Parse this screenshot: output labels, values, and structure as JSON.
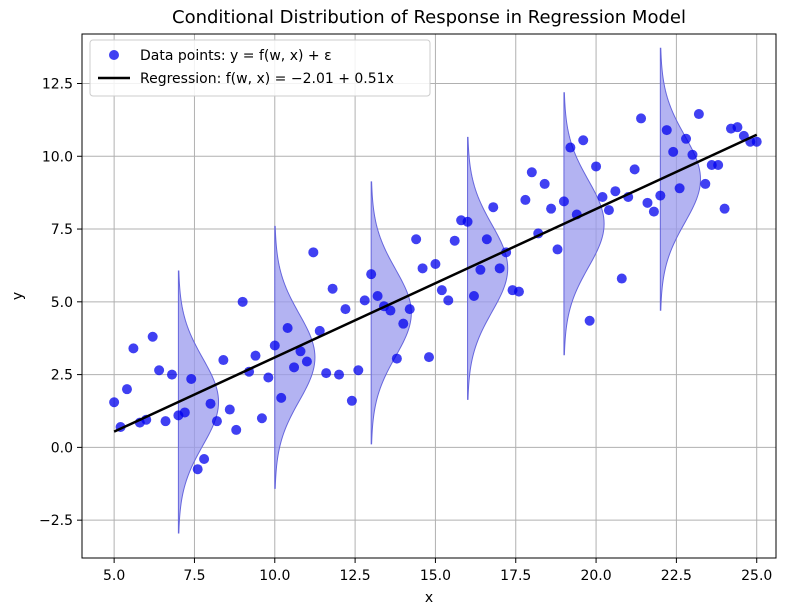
{
  "chart_data": {
    "type": "scatter",
    "title": "Conditional Distribution of Response in Regression Model",
    "xlabel": "x",
    "ylabel": "y",
    "xlim": [
      4.0,
      25.6
    ],
    "ylim": [
      -3.8,
      14.2
    ],
    "xticks": [
      5.0,
      7.5,
      10.0,
      12.5,
      15.0,
      17.5,
      20.0,
      22.5,
      25.0
    ],
    "xtick_labels": [
      "5.0",
      "7.5",
      "10.0",
      "12.5",
      "15.0",
      "17.5",
      "20.0",
      "22.5",
      "25.0"
    ],
    "yticks": [
      -2.5,
      0.0,
      2.5,
      5.0,
      7.5,
      10.0,
      12.5
    ],
    "ytick_labels": [
      "−2.5",
      "0.0",
      "2.5",
      "5.0",
      "7.5",
      "10.0",
      "12.5"
    ],
    "grid": true,
    "legend_position": "top-left",
    "colors": {
      "points": "#0000ee",
      "line": "#000000",
      "density_fill": "#9999ee",
      "density_edge": "#6666dd",
      "grid": "#b0b0b0"
    },
    "series": [
      {
        "name": "Data points: y = f(w, x) + ε",
        "kind": "scatter",
        "x": [
          5.0,
          5.2,
          5.4,
          5.6,
          5.8,
          6.0,
          6.2,
          6.4,
          6.6,
          6.8,
          7.0,
          7.2,
          7.4,
          7.6,
          7.8,
          8.0,
          8.2,
          8.4,
          8.6,
          8.8,
          9.0,
          9.2,
          9.4,
          9.6,
          9.8,
          10.0,
          10.2,
          10.4,
          10.6,
          10.8,
          11.0,
          11.2,
          11.4,
          11.6,
          11.8,
          12.0,
          12.2,
          12.4,
          12.6,
          12.8,
          13.0,
          13.2,
          13.4,
          13.6,
          13.8,
          14.0,
          14.2,
          14.4,
          14.6,
          14.8,
          15.0,
          15.2,
          15.4,
          15.6,
          15.8,
          16.0,
          16.2,
          16.4,
          16.6,
          16.8,
          17.0,
          17.2,
          17.4,
          17.6,
          17.8,
          18.0,
          18.2,
          18.4,
          18.6,
          18.8,
          19.0,
          19.2,
          19.4,
          19.6,
          19.8,
          20.0,
          20.2,
          20.4,
          20.6,
          20.8,
          21.0,
          21.2,
          21.4,
          21.6,
          21.8,
          22.0,
          22.2,
          22.4,
          22.6,
          22.8,
          23.0,
          23.2,
          23.4,
          23.6,
          23.8,
          24.0,
          24.2,
          24.4,
          24.6,
          24.8,
          25.0
        ],
        "y": [
          1.55,
          0.7,
          2.0,
          3.4,
          0.85,
          0.95,
          3.8,
          2.65,
          0.9,
          2.5,
          1.1,
          1.2,
          2.35,
          -0.75,
          -0.4,
          1.5,
          0.9,
          3.0,
          1.3,
          0.6,
          5.0,
          2.6,
          3.15,
          1.0,
          2.4,
          3.5,
          1.7,
          4.1,
          2.75,
          3.3,
          2.95,
          6.7,
          4.0,
          2.55,
          5.45,
          2.5,
          4.75,
          1.6,
          2.65,
          5.05,
          5.95,
          5.2,
          4.85,
          4.7,
          3.05,
          4.25,
          4.75,
          7.15,
          6.15,
          3.1,
          6.3,
          5.4,
          5.05,
          7.1,
          7.8,
          7.75,
          5.2,
          6.1,
          7.15,
          8.25,
          6.15,
          6.7,
          5.4,
          5.35,
          8.5,
          9.45,
          7.35,
          9.05,
          8.2,
          6.8,
          8.45,
          10.3,
          8.0,
          10.55,
          4.35,
          9.65,
          8.6,
          8.15,
          8.8,
          5.8,
          8.6,
          9.55,
          11.3,
          8.4,
          8.1,
          8.65,
          10.9,
          10.15,
          8.9,
          10.6,
          10.05,
          11.45,
          9.05,
          9.7,
          9.7,
          8.2,
          10.95,
          11.0,
          10.7,
          10.5,
          10.5
        ]
      },
      {
        "name": "Regression: f(w, x) = −2.01 + 0.51x",
        "kind": "line",
        "x": [
          5.0,
          25.0
        ],
        "y": [
          0.54,
          10.74
        ]
      }
    ],
    "conditional_densities": {
      "x_centers": [
        7.0,
        10.0,
        13.0,
        16.0,
        19.0,
        22.0
      ],
      "means": [
        1.56,
        3.09,
        4.62,
        6.15,
        7.68,
        9.21
      ],
      "sigma": 1.5,
      "half_range_sigmas": 3.0,
      "peak_width_x": 1.25
    }
  }
}
